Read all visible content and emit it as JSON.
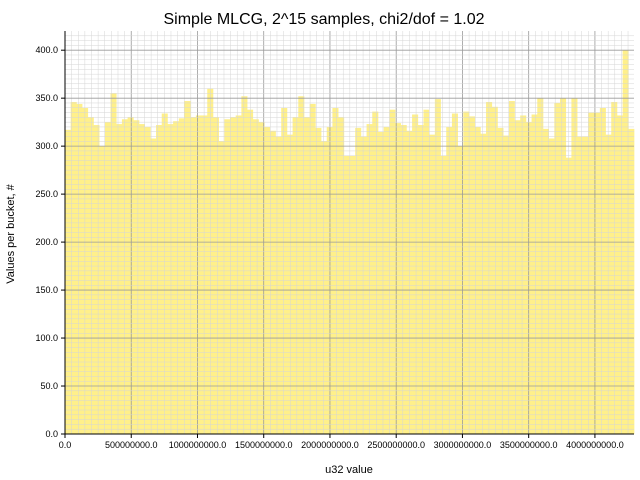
{
  "chart_data": {
    "type": "bar",
    "title": "Simple MLCG, 2^15 samples, chi2/dof = 1.02",
    "xlabel": "u32 value",
    "ylabel": "Values per bucket, #",
    "xlim": [
      0,
      4294967296
    ],
    "ylim": [
      0,
      420
    ],
    "grid": true,
    "minor_grid": true,
    "bar_color": "#fff08a",
    "x_ticks": [
      0,
      500000000,
      1000000000,
      1500000000,
      2000000000,
      2500000000,
      3000000000,
      3500000000,
      4000000000
    ],
    "x_tick_labels": [
      "0.0",
      "500000000.0",
      "1000000000.0",
      "1500000000.0",
      "2000000000.0",
      "2500000000.0",
      "3000000000.0",
      "3500000000.0",
      "4000000000.0"
    ],
    "y_ticks": [
      0,
      50,
      100,
      150,
      200,
      250,
      300,
      350,
      400
    ],
    "y_tick_labels": [
      "0.0",
      "50.0",
      "100.0",
      "150.0",
      "200.0",
      "250.0",
      "300.0",
      "350.0",
      "400.0"
    ],
    "bin_count": 100,
    "values": [
      317,
      346,
      344,
      340,
      330,
      322,
      300,
      325,
      355,
      323,
      328,
      330,
      327,
      323,
      320,
      308,
      322,
      334,
      323,
      326,
      329,
      347,
      330,
      332,
      332,
      360,
      330,
      305,
      328,
      330,
      332,
      352,
      338,
      328,
      325,
      320,
      316,
      310,
      340,
      312,
      330,
      352,
      330,
      344,
      319,
      305,
      320,
      340,
      330,
      290,
      290,
      319,
      310,
      323,
      336,
      315,
      320,
      338,
      324,
      322,
      316,
      333,
      322,
      338,
      312,
      349,
      290,
      320,
      334,
      300,
      336,
      331,
      320,
      313,
      346,
      341,
      319,
      311,
      347,
      327,
      332,
      325,
      333,
      350,
      318,
      308,
      345,
      350,
      288,
      350,
      310,
      310,
      335,
      335,
      340,
      312,
      346,
      332,
      400,
      318
    ]
  }
}
